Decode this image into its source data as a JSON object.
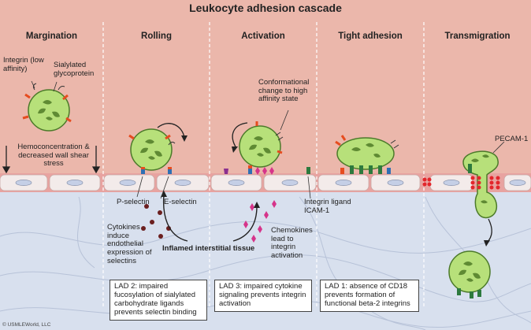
{
  "title": "Leukocyte adhesion cascade",
  "stages": [
    "Margination",
    "Rolling",
    "Activation",
    "Tight adhesion",
    "Transmigration"
  ],
  "labels": {
    "integrin_low": "Integrin (low affinity)",
    "sialylated": "Sialylated glycoprotein",
    "hemoconcentration": "Hemoconcentration & decreased wall shear stress",
    "conformational": "Conformational change to high affinity state",
    "p_selectin": "P-selectin",
    "e_selectin": "E-selectin",
    "cytokines": "Cytokines induce endothelial expression of selectins",
    "inflamed": "Inflamed interstitial tissue",
    "integrin_ligand": "Integrin ligand ICAM-1",
    "chemokines": "Chemokines lead to integrin activation",
    "pecam": "PECAM-1"
  },
  "boxes": {
    "lad2": "LAD 2: impaired fucosylation of sialylated carbohydrate ligands prevents selectin binding",
    "lad3": "LAD 3: impaired cytokine signaling prevents integrin activation",
    "lad1": "LAD 1: absence of CD18 prevents formation of functional beta-2 integrins"
  },
  "copyright": "© USMLEWorld, LLC",
  "colors": {
    "vessel": "#ebb7ab",
    "tissue": "#d8e0ee",
    "endothelium": "#f3ebea",
    "nucleus": "#c5cfe6",
    "cell": "#b7e07a",
    "cell_stroke": "#4c7a2a",
    "nucleus_cell": "#5f8a33",
    "selectin_red": "#e64c1f",
    "selectin_blue": "#2f6fb3",
    "chemokine": "#d6348a",
    "cytokine": "#6b1f1f",
    "integrin_green": "#2d7a3e",
    "pecam": "#e3262b"
  }
}
